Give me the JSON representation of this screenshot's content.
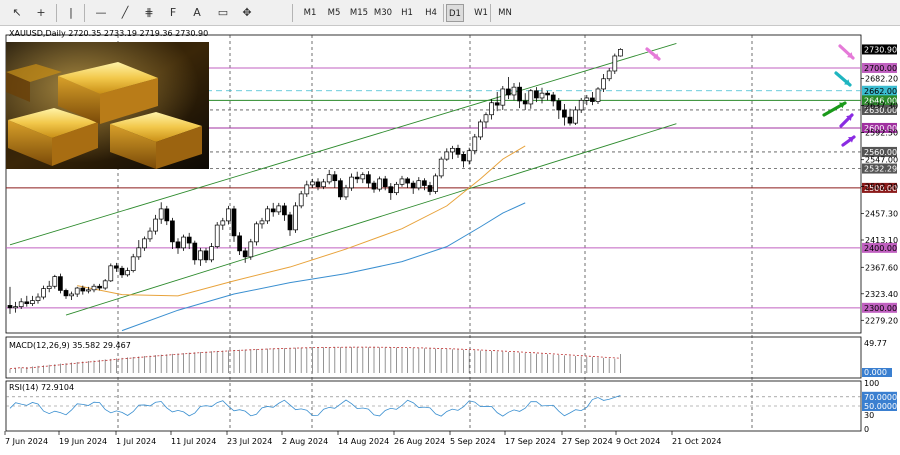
{
  "toolbar": {
    "tools": [
      {
        "name": "cursor-icon",
        "glyph": "↖"
      },
      {
        "name": "crosshair-icon",
        "glyph": "+"
      },
      {
        "name": "vertical-line-icon",
        "glyph": "|"
      },
      {
        "name": "horizontal-line-icon",
        "glyph": "—"
      },
      {
        "name": "trendline-icon",
        "glyph": "╱"
      },
      {
        "name": "channel-icon",
        "glyph": "⋕"
      },
      {
        "name": "fibonacci-icon",
        "glyph": "F"
      },
      {
        "name": "text-icon",
        "glyph": "A"
      },
      {
        "name": "label-icon",
        "glyph": "▭"
      },
      {
        "name": "shapes-icon",
        "glyph": "✥"
      }
    ],
    "timeframes": [
      "M1",
      "M5",
      "M15",
      "M30",
      "H1",
      "H4",
      "D1",
      "W1",
      "MN"
    ],
    "active_timeframe": "D1"
  },
  "symbol_info": "XAUUSD,Daily  2720.35 2733.19 2719.36 2730.90",
  "indicators": {
    "macd_label": "MACD(12,26,9) 35.582 29.467",
    "rsi_label": "RSI(14) 72.9104"
  },
  "colors": {
    "bull": "#ffffff",
    "bear": "#000000",
    "channel": "#2e8b2e",
    "ema_fast": "#e8a33c",
    "ema_slow": "#3a8fd0",
    "cyan_line": "#3bbcd0",
    "magenta_line": "#c060c0",
    "level_2646": "#2a8a2a",
    "level_2500": "#8b1a1a",
    "arrow_pink": "#e57ad8",
    "arrow_cyan": "#1fb5c0",
    "arrow_green": "#1a9a1a",
    "arrow_purple": "#8a2be2"
  },
  "chart_data": {
    "type": "candlestick",
    "symbol": "XAUUSD",
    "timeframe": "Daily",
    "last_ohlc": {
      "open": 2720.35,
      "high": 2733.19,
      "low": 2719.36,
      "close": 2730.9
    },
    "price_axis_ticks": [
      "2682.20",
      "2637.30",
      "2592.50",
      "2547.00",
      "2502.20",
      "2457.30",
      "2413.10",
      "2367.60",
      "2323.40",
      "2279.20"
    ],
    "x_tick_labels": [
      "7 Jun 2024",
      "19 Jun 2024",
      "1 Jul 2024",
      "11 Jul 2024",
      "23 Jul 2024",
      "2 Aug 2024",
      "14 Aug 2024",
      "26 Aug 2024",
      "5 Sep 2024",
      "17 Sep 2024",
      "27 Sep 2024",
      "9 Oct 2024",
      "21 Oct 2024"
    ],
    "ylim": [
      2258,
      2755
    ],
    "levels": [
      {
        "label": "2730.90",
        "price": 2730.9,
        "style": "current",
        "color": "#000000",
        "text_color": "#ffffff"
      },
      {
        "label": "2700.00",
        "price": 2700,
        "style": "solid",
        "color": "#c060c0",
        "text_color": "#000000"
      },
      {
        "label": "2662.00",
        "price": 2662,
        "style": "dashed",
        "color": "#3bbcd0",
        "text_color": "#000000"
      },
      {
        "label": "2646.00",
        "price": 2646,
        "style": "solid",
        "color": "#2a8a2a",
        "text_color": "#ffffff"
      },
      {
        "label": "2630.00",
        "price": 2630,
        "style": "dashed",
        "color": "#555555",
        "text_color": "#ffffff"
      },
      {
        "label": "2600.00",
        "price": 2600,
        "style": "solid",
        "color": "#a030a0",
        "text_color": "#ffffff"
      },
      {
        "label": "2560.00",
        "price": 2560,
        "style": "dashed",
        "color": "#555555",
        "text_color": "#ffffff"
      },
      {
        "label": "2532.29",
        "price": 2532.29,
        "style": "dashed",
        "color": "#555555",
        "text_color": "#ffffff"
      },
      {
        "label": "2500.00",
        "price": 2500,
        "style": "solid",
        "color": "#8b1a1a",
        "text_color": "#ffffff"
      },
      {
        "label": "2400.00",
        "price": 2400,
        "style": "solid",
        "color": "#c060c0",
        "text_color": "#000000"
      },
      {
        "label": "2300.00",
        "price": 2300,
        "style": "solid",
        "color": "#c060c0",
        "text_color": "#000000"
      }
    ],
    "channel": {
      "upper": [
        [
          0,
          2405
        ],
        [
          119,
          2741
        ]
      ],
      "lower": [
        [
          10,
          2288
        ],
        [
          119,
          2607
        ]
      ]
    },
    "ema_fast": [
      [
        12,
        2337
      ],
      [
        20,
        2322
      ],
      [
        30,
        2320
      ],
      [
        40,
        2345
      ],
      [
        50,
        2368
      ],
      [
        60,
        2398
      ],
      [
        70,
        2432
      ],
      [
        78,
        2470
      ],
      [
        84,
        2515
      ],
      [
        88,
        2548
      ],
      [
        92,
        2570
      ]
    ],
    "ema_slow": [
      [
        20,
        2262
      ],
      [
        30,
        2296
      ],
      [
        40,
        2323
      ],
      [
        50,
        2342
      ],
      [
        60,
        2357
      ],
      [
        70,
        2377
      ],
      [
        78,
        2402
      ],
      [
        84,
        2435
      ],
      [
        88,
        2458
      ],
      [
        92,
        2475
      ]
    ],
    "candles": [
      [
        2304,
        2300,
        2335,
        2290
      ],
      [
        2300,
        2302,
        2310,
        2292
      ],
      [
        2302,
        2310,
        2316,
        2298
      ],
      [
        2310,
        2307,
        2320,
        2302
      ],
      [
        2307,
        2312,
        2320,
        2303
      ],
      [
        2312,
        2318,
        2324,
        2307
      ],
      [
        2318,
        2332,
        2337,
        2314
      ],
      [
        2332,
        2336,
        2345,
        2326
      ],
      [
        2336,
        2352,
        2355,
        2332
      ],
      [
        2352,
        2329,
        2357,
        2324
      ],
      [
        2329,
        2320,
        2332,
        2315
      ],
      [
        2320,
        2323,
        2327,
        2313
      ],
      [
        2323,
        2333,
        2335,
        2318
      ],
      [
        2333,
        2328,
        2337,
        2322
      ],
      [
        2328,
        2330,
        2335,
        2324
      ],
      [
        2330,
        2336,
        2340,
        2326
      ],
      [
        2336,
        2333,
        2340,
        2329
      ],
      [
        2333,
        2345,
        2348,
        2330
      ],
      [
        2345,
        2370,
        2374,
        2343
      ],
      [
        2370,
        2366,
        2375,
        2360
      ],
      [
        2366,
        2355,
        2370,
        2350
      ],
      [
        2355,
        2362,
        2367,
        2352
      ],
      [
        2362,
        2385,
        2390,
        2359
      ],
      [
        2385,
        2400,
        2413,
        2380
      ],
      [
        2400,
        2415,
        2419,
        2395
      ],
      [
        2415,
        2428,
        2434,
        2410
      ],
      [
        2428,
        2448,
        2455,
        2422
      ],
      [
        2448,
        2465,
        2476,
        2440
      ],
      [
        2465,
        2445,
        2470,
        2438
      ],
      [
        2445,
        2410,
        2450,
        2398
      ],
      [
        2410,
        2400,
        2416,
        2390
      ],
      [
        2400,
        2418,
        2422,
        2395
      ],
      [
        2418,
        2408,
        2425,
        2398
      ],
      [
        2408,
        2380,
        2412,
        2372
      ],
      [
        2380,
        2395,
        2400,
        2370
      ],
      [
        2395,
        2380,
        2400,
        2375
      ],
      [
        2380,
        2402,
        2408,
        2376
      ],
      [
        2402,
        2438,
        2443,
        2399
      ],
      [
        2438,
        2445,
        2450,
        2430
      ],
      [
        2445,
        2465,
        2470,
        2439
      ],
      [
        2465,
        2420,
        2470,
        2410
      ],
      [
        2420,
        2395,
        2426,
        2388
      ],
      [
        2395,
        2385,
        2400,
        2375
      ],
      [
        2385,
        2410,
        2415,
        2380
      ],
      [
        2410,
        2440,
        2444,
        2404
      ],
      [
        2440,
        2445,
        2450,
        2432
      ],
      [
        2445,
        2465,
        2470,
        2440
      ],
      [
        2465,
        2460,
        2475,
        2452
      ],
      [
        2460,
        2470,
        2475,
        2455
      ],
      [
        2470,
        2455,
        2475,
        2445
      ],
      [
        2455,
        2430,
        2460,
        2420
      ],
      [
        2430,
        2470,
        2476,
        2425
      ],
      [
        2470,
        2490,
        2495,
        2466
      ],
      [
        2490,
        2505,
        2512,
        2485
      ],
      [
        2505,
        2510,
        2515,
        2500
      ],
      [
        2510,
        2502,
        2516,
        2496
      ],
      [
        2502,
        2510,
        2515,
        2498
      ],
      [
        2510,
        2522,
        2530,
        2506
      ],
      [
        2522,
        2512,
        2528,
        2500
      ],
      [
        2512,
        2485,
        2516,
        2480
      ],
      [
        2485,
        2500,
        2505,
        2480
      ],
      [
        2500,
        2518,
        2524,
        2495
      ],
      [
        2518,
        2515,
        2527,
        2508
      ],
      [
        2515,
        2522,
        2526,
        2508
      ],
      [
        2522,
        2508,
        2528,
        2500
      ],
      [
        2508,
        2498,
        2512,
        2492
      ],
      [
        2498,
        2515,
        2519,
        2494
      ],
      [
        2515,
        2502,
        2520,
        2496
      ],
      [
        2502,
        2492,
        2508,
        2480
      ],
      [
        2492,
        2506,
        2510,
        2488
      ],
      [
        2506,
        2515,
        2520,
        2502
      ],
      [
        2515,
        2508,
        2518,
        2500
      ],
      [
        2508,
        2500,
        2512,
        2490
      ],
      [
        2500,
        2512,
        2518,
        2496
      ],
      [
        2512,
        2504,
        2516,
        2496
      ],
      [
        2504,
        2494,
        2510,
        2488
      ],
      [
        2494,
        2520,
        2524,
        2490
      ],
      [
        2520,
        2548,
        2552,
        2516
      ],
      [
        2548,
        2560,
        2566,
        2545
      ],
      [
        2560,
        2566,
        2570,
        2548
      ],
      [
        2566,
        2556,
        2572,
        2550
      ],
      [
        2556,
        2545,
        2560,
        2534
      ],
      [
        2545,
        2562,
        2567,
        2539
      ],
      [
        2562,
        2585,
        2590,
        2556
      ],
      [
        2585,
        2610,
        2614,
        2580
      ],
      [
        2610,
        2622,
        2626,
        2600
      ],
      [
        2622,
        2642,
        2648,
        2614
      ],
      [
        2642,
        2638,
        2660,
        2628
      ],
      [
        2638,
        2665,
        2670,
        2630
      ],
      [
        2665,
        2655,
        2685,
        2648
      ],
      [
        2655,
        2668,
        2675,
        2646
      ],
      [
        2668,
        2645,
        2676,
        2633
      ],
      [
        2645,
        2640,
        2658,
        2630
      ],
      [
        2640,
        2662,
        2665,
        2632
      ],
      [
        2662,
        2650,
        2668,
        2643
      ],
      [
        2650,
        2658,
        2667,
        2641
      ],
      [
        2658,
        2655,
        2662,
        2646
      ],
      [
        2655,
        2645,
        2660,
        2636
      ],
      [
        2645,
        2630,
        2650,
        2615
      ],
      [
        2630,
        2618,
        2640,
        2604
      ],
      [
        2618,
        2608,
        2632,
        2604
      ],
      [
        2608,
        2630,
        2636,
        2605
      ],
      [
        2630,
        2646,
        2650,
        2625
      ],
      [
        2646,
        2650,
        2655,
        2638
      ],
      [
        2650,
        2644,
        2660,
        2638
      ],
      [
        2644,
        2665,
        2668,
        2640
      ],
      [
        2665,
        2682,
        2690,
        2660
      ],
      [
        2682,
        2695,
        2700,
        2678
      ],
      [
        2695,
        2720,
        2724,
        2690
      ],
      [
        2720,
        2731,
        2733,
        2719
      ]
    ],
    "macd": {
      "label": "MACD(12,26,9)",
      "main": 35.582,
      "signal": 29.467,
      "axis_ticks": [
        "49.77",
        "0.000"
      ]
    },
    "rsi": {
      "label": "RSI(14)",
      "value": 72.9104,
      "levels": [
        "70.0000",
        "50.0000"
      ],
      "axis_ticks": [
        "100",
        "70",
        "50",
        "30",
        "0"
      ]
    }
  }
}
